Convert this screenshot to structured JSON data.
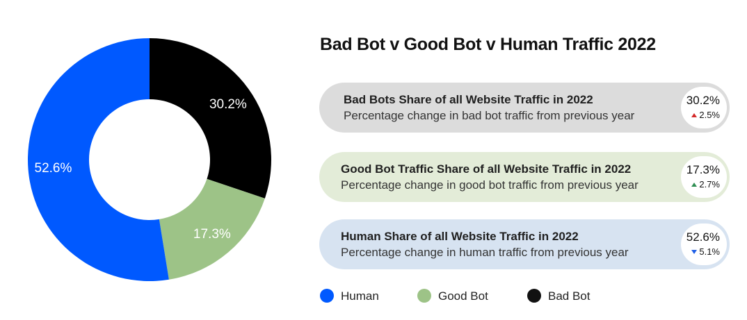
{
  "chart_data": {
    "type": "pie",
    "title": "Bad Bot v Good Bot v Human Traffic 2022",
    "donut": true,
    "slices": [
      {
        "name": "Bad Bot",
        "value": 30.2,
        "label": "30.2%",
        "color": "#000000"
      },
      {
        "name": "Good Bot",
        "value": 17.3,
        "label": "17.3%",
        "color": "#9dc387"
      },
      {
        "name": "Human",
        "value": 52.6,
        "label": "52.6%",
        "color": "#0059ff"
      }
    ],
    "legend": {
      "placement": "bottom",
      "entries": [
        {
          "name": "Human",
          "color": "#0059ff"
        },
        {
          "name": "Good Bot",
          "color": "#9dc387"
        },
        {
          "name": "Bad Bot",
          "color": "#000000"
        }
      ]
    }
  },
  "cards": [
    {
      "label": "Bad Bots Share of all Website Traffic in 2022",
      "sub": "Percentage change in bad bot traffic from previous year",
      "value": "30.2%",
      "delta": "2.5%",
      "direction": "up",
      "arrow_color": "#d32a2a",
      "bg_color": "#dcdcdc"
    },
    {
      "label": "Good Bot Traffic Share of all Website Traffic in 2022",
      "sub": "Percentage change in good bot traffic from previous year",
      "value": "17.3%",
      "delta": "2.7%",
      "direction": "up",
      "arrow_color": "#2f8f53",
      "bg_color": "#e3ecd8"
    },
    {
      "label": "Human Share of all Website Traffic in 2022",
      "sub": "Percentage change in human traffic from previous year",
      "value": "52.6%",
      "delta": "5.1%",
      "direction": "down",
      "arrow_color": "#1f5fe6",
      "bg_color": "#d7e3f1"
    }
  ]
}
